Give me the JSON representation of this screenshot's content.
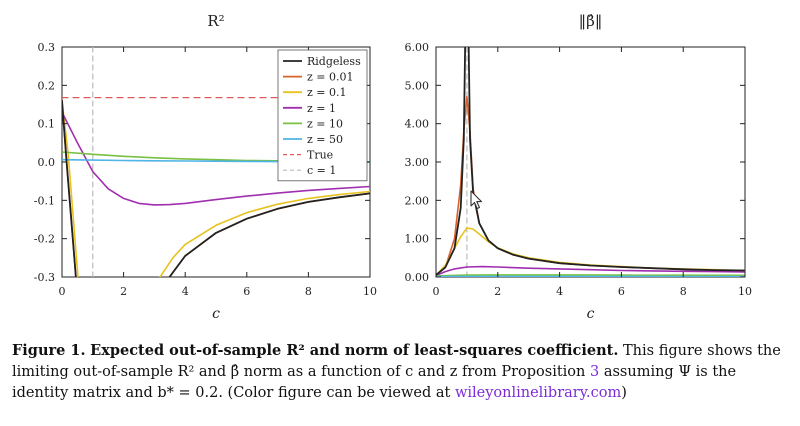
{
  "chart_data": [
    {
      "type": "line",
      "title": "R²",
      "xlabel": "c",
      "xlim": [
        0,
        10
      ],
      "ylim": [
        -0.3,
        0.3
      ],
      "x_ticks": [
        "0",
        "2",
        "4",
        "6",
        "8",
        "10"
      ],
      "y_ticks": [
        "0.3",
        "0.2",
        "0.1",
        "0.0",
        "-0.1",
        "-0.2",
        "-0.3"
      ],
      "legend": {
        "position": "top-right",
        "entries": [
          "Ridgeless",
          "z = 0.01",
          "z = 0.1",
          "z = 1",
          "z = 10",
          "z = 50",
          "True",
          "c = 1"
        ]
      },
      "series": [
        {
          "name": "Ridgeless",
          "color": "#222222",
          "x": [
            0,
            0.15,
            0.35,
            0.5
          ],
          "y": [
            0.16,
            0.0,
            -0.2,
            -0.35
          ]
        },
        {
          "name": "Ridgeless",
          "color": "#222222",
          "x": [
            3.4,
            4,
            5,
            6,
            7,
            8,
            9,
            10
          ],
          "y": [
            -0.31,
            -0.245,
            -0.185,
            -0.148,
            -0.122,
            -0.104,
            -0.092,
            -0.082
          ]
        },
        {
          "name": "z = 0.01",
          "color": "#d9622a",
          "x": [
            0,
            0.15,
            0.35,
            0.5
          ],
          "y": [
            0.16,
            0.0,
            -0.2,
            -0.35
          ]
        },
        {
          "name": "z = 0.01",
          "color": "#d9622a",
          "x": [
            3.4,
            4,
            5,
            6,
            7,
            8,
            9,
            10
          ],
          "y": [
            -0.31,
            -0.245,
            -0.185,
            -0.148,
            -0.122,
            -0.104,
            -0.092,
            -0.082
          ]
        },
        {
          "name": "z = 0.1",
          "color": "#e8c21f",
          "x": [
            0,
            0.2,
            0.4,
            0.55
          ],
          "y": [
            0.16,
            0.02,
            -0.18,
            -0.33
          ]
        },
        {
          "name": "z = 0.1",
          "color": "#e8c21f",
          "x": [
            3.1,
            3.6,
            4,
            5,
            6,
            7,
            8,
            9,
            10
          ],
          "y": [
            -0.31,
            -0.25,
            -0.215,
            -0.165,
            -0.132,
            -0.11,
            -0.095,
            -0.085,
            -0.077
          ]
        },
        {
          "name": "z = 1",
          "color": "#a02fb0",
          "x": [
            0,
            0.5,
            1,
            1.5,
            2,
            2.5,
            3,
            3.5,
            4,
            5,
            6,
            7,
            8,
            9,
            10
          ],
          "y": [
            0.13,
            0.05,
            -0.025,
            -0.07,
            -0.095,
            -0.108,
            -0.112,
            -0.111,
            -0.108,
            -0.098,
            -0.089,
            -0.081,
            -0.074,
            -0.069,
            -0.064
          ]
        },
        {
          "name": "z = 10",
          "color": "#79c043",
          "x": [
            0,
            1,
            2,
            3,
            4,
            5,
            6,
            7,
            8,
            9,
            10
          ],
          "y": [
            0.026,
            0.02,
            0.015,
            0.011,
            0.008,
            0.006,
            0.004,
            0.003,
            0.002,
            0.001,
            0.0
          ]
        },
        {
          "name": "z = 50",
          "color": "#4fb4e6",
          "x": [
            0,
            1,
            2,
            3,
            4,
            5,
            6,
            7,
            8,
            9,
            10
          ],
          "y": [
            0.006,
            0.005,
            0.004,
            0.003,
            0.0025,
            0.002,
            0.0015,
            0.001,
            0.0008,
            0.0005,
            0.0003
          ]
        },
        {
          "name": "True",
          "color": "#e05a5a",
          "dashed": true,
          "x": [
            0,
            10
          ],
          "y": [
            0.168,
            0.168
          ]
        },
        {
          "name": "c = 1",
          "color": "#bbbbbb",
          "dashed": true,
          "vertical": true,
          "x": [
            1,
            1
          ],
          "y": [
            -0.3,
            0.3
          ]
        }
      ]
    },
    {
      "type": "line",
      "title": "‖β̂‖",
      "xlabel": "c",
      "xlim": [
        0,
        10
      ],
      "ylim": [
        0,
        6
      ],
      "x_ticks": [
        "0",
        "2",
        "4",
        "6",
        "8",
        "10"
      ],
      "y_ticks": [
        "6.00",
        "5.00",
        "4.00",
        "3.00",
        "2.00",
        "1.00",
        "0.00"
      ],
      "series": [
        {
          "name": "Ridgeless",
          "color": "#222222",
          "x": [
            0,
            0.3,
            0.6,
            0.8,
            0.9,
            0.95,
            1.05,
            1.1,
            1.2,
            1.4,
            1.7,
            2,
            2.5,
            3,
            4,
            5,
            6,
            7,
            8,
            9,
            10
          ],
          "y": [
            0.05,
            0.25,
            0.75,
            1.8,
            3.6,
            6.5,
            6.5,
            3.6,
            2.2,
            1.4,
            0.95,
            0.75,
            0.58,
            0.48,
            0.36,
            0.3,
            0.26,
            0.23,
            0.2,
            0.18,
            0.17
          ]
        },
        {
          "name": "z = 0.01",
          "color": "#d9622a",
          "x": [
            0,
            0.3,
            0.6,
            0.8,
            0.9,
            1.0,
            1.1,
            1.2,
            1.4,
            1.7,
            2,
            2.5,
            3,
            4,
            5,
            6,
            7,
            8,
            9,
            10
          ],
          "y": [
            0.05,
            0.25,
            1.0,
            2.4,
            3.8,
            4.7,
            3.8,
            2.3,
            1.4,
            0.95,
            0.75,
            0.58,
            0.48,
            0.36,
            0.3,
            0.26,
            0.23,
            0.2,
            0.18,
            0.17
          ]
        },
        {
          "name": "z = 0.1",
          "color": "#e8c21f",
          "x": [
            0,
            0.3,
            0.6,
            0.8,
            1.0,
            1.2,
            1.4,
            1.7,
            2,
            2.5,
            3,
            4,
            5,
            6,
            7,
            8,
            9,
            10
          ],
          "y": [
            0.05,
            0.3,
            0.75,
            1.05,
            1.28,
            1.25,
            1.12,
            0.92,
            0.76,
            0.6,
            0.5,
            0.38,
            0.31,
            0.27,
            0.23,
            0.21,
            0.19,
            0.17
          ]
        },
        {
          "name": "z = 1",
          "color": "#a02fb0",
          "x": [
            0,
            0.3,
            0.6,
            1,
            1.5,
            2,
            3,
            4,
            5,
            6,
            7,
            8,
            9,
            10
          ],
          "y": [
            0.04,
            0.14,
            0.21,
            0.26,
            0.27,
            0.26,
            0.23,
            0.21,
            0.19,
            0.17,
            0.16,
            0.15,
            0.14,
            0.13
          ]
        },
        {
          "name": "z = 10",
          "color": "#79c043",
          "x": [
            0,
            1,
            2,
            4,
            6,
            8,
            10
          ],
          "y": [
            0.03,
            0.05,
            0.055,
            0.055,
            0.05,
            0.048,
            0.045
          ]
        },
        {
          "name": "z = 50",
          "color": "#4fb4e6",
          "x": [
            0,
            1,
            2,
            4,
            6,
            8,
            10
          ],
          "y": [
            0.01,
            0.015,
            0.016,
            0.016,
            0.015,
            0.014,
            0.013
          ]
        },
        {
          "name": "c = 1",
          "color": "#bbbbbb",
          "dashed": true,
          "vertical": true,
          "x": [
            1,
            1
          ],
          "y": [
            0,
            6
          ]
        }
      ]
    }
  ],
  "caption": {
    "label": "Figure 1.",
    "heading": "Expected out-of-sample R² and norm of least-squares coefficient.",
    "text_part1": "This figure shows the limiting out-of-sample R² and β̂ norm as a function of c and z from Proposition ",
    "prop_ref": "3",
    "text_part2": " assuming Ψ is the identity matrix and b* = 0.2. (Color figure can be viewed at ",
    "link": "wileyonlinelibrary.com",
    "text_end": ")"
  }
}
